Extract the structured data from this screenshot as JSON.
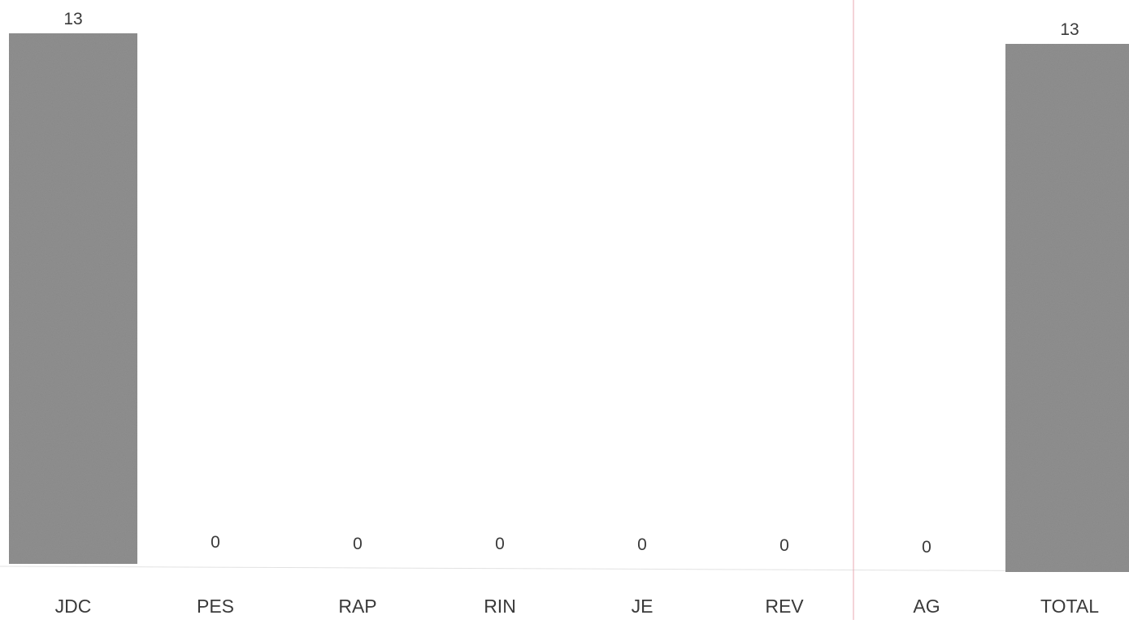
{
  "chart_data": {
    "type": "bar",
    "categories": [
      "JDC",
      "PES",
      "RAP",
      "RIN",
      "JE",
      "REV",
      "AG",
      "TOTAL"
    ],
    "values": [
      13,
      0,
      0,
      0,
      0,
      0,
      0,
      13
    ],
    "data_labels": [
      "13",
      "0",
      "0",
      "0",
      "0",
      "0",
      "0",
      "13"
    ],
    "ylim": [
      0,
      13
    ],
    "grid": false,
    "bar_color": "#8f8f8f",
    "divider_color": "#e8a8b0",
    "axis_color": "#e2e2e2"
  }
}
